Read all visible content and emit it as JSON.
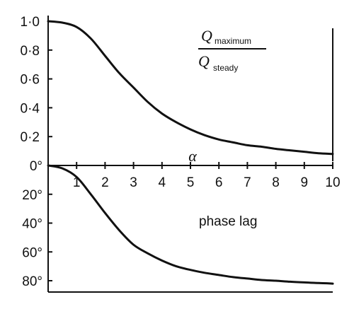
{
  "chart_data": [
    {
      "type": "line",
      "panel": "upper",
      "title": "",
      "xlabel": "α",
      "ylabel": "",
      "xlim": [
        0,
        10
      ],
      "ylim": [
        0,
        1.0
      ],
      "grid": false,
      "x_tick_labels": [
        "1",
        "2",
        "3",
        "4",
        "5",
        "6",
        "7",
        "8",
        "9",
        "10"
      ],
      "y_tick_labels": [
        "1·0",
        "0·8",
        "0·6",
        "0·4",
        "0·2"
      ],
      "annotation": {
        "numerator": "Q",
        "numerator_sub": "maximum",
        "denominator": "Q",
        "denominator_sub": "steady"
      },
      "series": [
        {
          "x": [
            0,
            0.5,
            1.0,
            1.5,
            2.0,
            2.5,
            3.0,
            3.5,
            4.0,
            4.5,
            5.0,
            5.5,
            6.0,
            6.5,
            7.0,
            7.5,
            8.0,
            8.5,
            9.0,
            9.5,
            10.0
          ],
          "y": [
            1.0,
            0.99,
            0.96,
            0.88,
            0.76,
            0.64,
            0.54,
            0.44,
            0.36,
            0.3,
            0.25,
            0.21,
            0.18,
            0.16,
            0.14,
            0.13,
            0.115,
            0.105,
            0.095,
            0.085,
            0.08
          ]
        }
      ]
    },
    {
      "type": "line",
      "panel": "lower",
      "title": "",
      "xlabel": "",
      "ylabel": "",
      "xlim": [
        0,
        10
      ],
      "ylim": [
        0,
        90
      ],
      "y_inverted": true,
      "grid": false,
      "y_tick_labels": [
        "0°",
        "20°",
        "40°",
        "60°",
        "80°"
      ],
      "annotation": {
        "text": "phase lag"
      },
      "series": [
        {
          "x": [
            0,
            0.5,
            1.0,
            1.5,
            2.0,
            2.5,
            3.0,
            3.5,
            4.0,
            4.5,
            5.0,
            5.5,
            6.0,
            6.5,
            7.0,
            7.5,
            8.0,
            8.5,
            9.0,
            9.5,
            10.0
          ],
          "y": [
            0,
            2,
            8,
            20,
            33,
            45,
            55,
            61,
            66,
            70,
            72.5,
            74.5,
            76,
            77.5,
            78.5,
            79.5,
            80,
            80.7,
            81.2,
            81.6,
            82
          ]
        }
      ]
    }
  ]
}
